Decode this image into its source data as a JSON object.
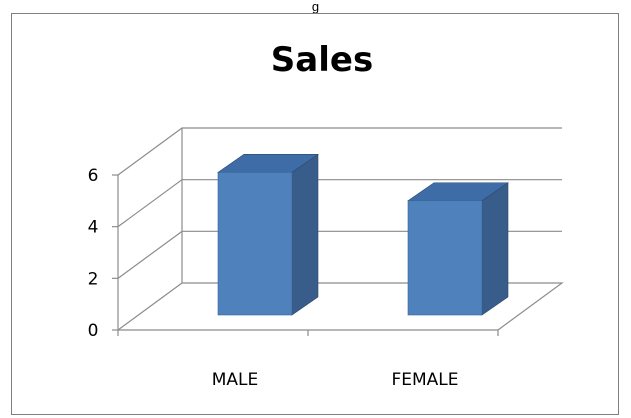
{
  "page": {
    "caption_fragment": "g"
  },
  "chart_data": {
    "type": "bar",
    "style": "3d-column",
    "title": "Sales",
    "categories": [
      "MALE",
      "FEMALE"
    ],
    "values": [
      5.6,
      4.5
    ],
    "ylim": [
      0,
      6
    ],
    "yticks": [
      "0",
      "2",
      "4",
      "6"
    ],
    "grid": true,
    "legend": "none",
    "colors": {
      "front": "#4F81BD",
      "side": "#385D8A",
      "top": "#3D6CA6",
      "grid": "#8C8C8C",
      "frame": "#7F7F7F"
    }
  }
}
